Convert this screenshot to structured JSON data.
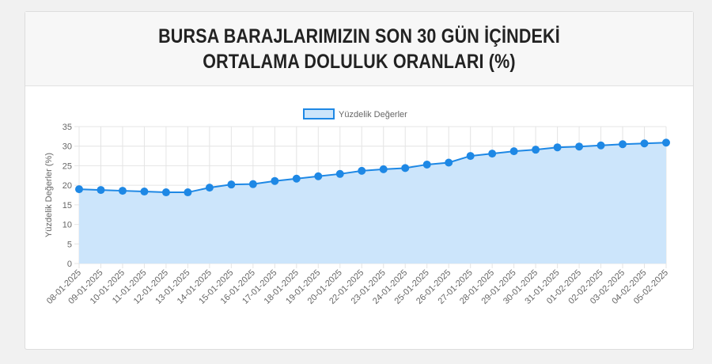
{
  "chart_data": {
    "type": "line",
    "title": "BURSA BARAJLARIMIZIN SON 30 GÜN İÇİNDEKİ ORTALAMA DOLULUK ORANLARI (%)",
    "y_label": "Yüzdelik Değerler (%)",
    "categories": [
      "08-01-2025",
      "09-01-2025",
      "10-01-2025",
      "11-01-2025",
      "12-01-2025",
      "13-01-2025",
      "14-01-2025",
      "15-01-2025",
      "16-01-2025",
      "17-01-2025",
      "18-01-2025",
      "19-01-2025",
      "20-01-2025",
      "22-01-2025",
      "23-01-2025",
      "24-01-2025",
      "25-01-2025",
      "26-01-2025",
      "27-01-2025",
      "28-01-2025",
      "29-01-2025",
      "30-01-2025",
      "31-01-2025",
      "01-02-2025",
      "02-02-2025",
      "03-02-2025",
      "04-02-2025",
      "05-02-2025"
    ],
    "series": [
      {
        "name": "Yüzdelik Değerler",
        "color": "#1e88e5",
        "fill": "#cce5fb",
        "values": [
          19.0,
          18.8,
          18.6,
          18.4,
          18.2,
          18.2,
          19.4,
          20.2,
          20.3,
          21.1,
          21.7,
          22.3,
          22.9,
          23.7,
          24.1,
          24.4,
          25.3,
          25.8,
          27.5,
          28.1,
          28.7,
          29.1,
          29.7,
          29.9,
          30.2,
          30.5,
          30.7,
          30.9
        ]
      }
    ],
    "ylim": [
      0,
      35
    ],
    "yticks": [
      0,
      5,
      10,
      15,
      20,
      25,
      30,
      35
    ],
    "grid": true
  }
}
